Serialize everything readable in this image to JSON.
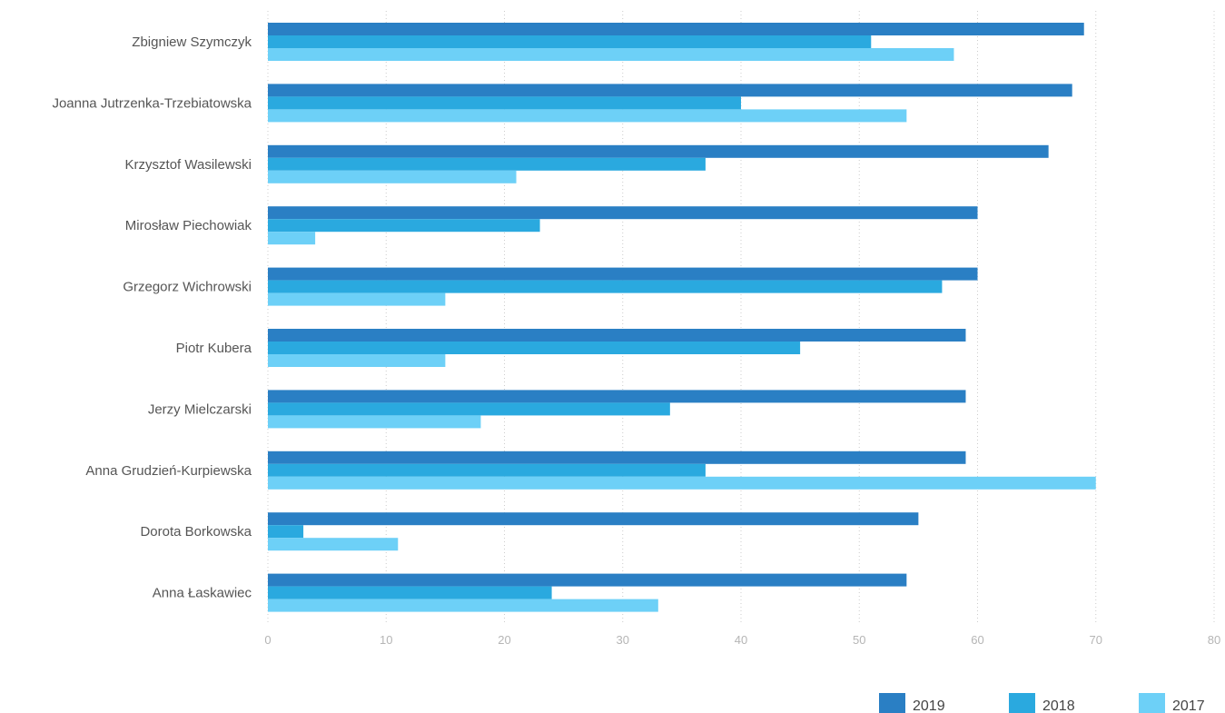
{
  "chart_data": {
    "type": "bar",
    "orientation": "horizontal",
    "categories": [
      "Zbigniew Szymczyk",
      "Joanna Jutrzenka-Trzebiatowska",
      "Krzysztof Wasilewski",
      "Mirosław Piechowiak",
      "Grzegorz Wichrowski",
      "Piotr Kubera",
      "Jerzy Mielczarski",
      "Anna Grudzień-Kurpiewska",
      "Dorota Borkowska",
      "Anna Łaskawiec"
    ],
    "series": [
      {
        "name": "2019",
        "color": "#2a7fc4",
        "values": [
          69,
          68,
          66,
          60,
          60,
          59,
          59,
          59,
          55,
          54
        ]
      },
      {
        "name": "2018",
        "color": "#2aa9df",
        "values": [
          51,
          40,
          37,
          23,
          57,
          45,
          34,
          37,
          3,
          24
        ]
      },
      {
        "name": "2017",
        "color": "#6dd0f7",
        "values": [
          58,
          54,
          21,
          4,
          15,
          15,
          18,
          70,
          11,
          33
        ]
      }
    ],
    "xlim": [
      0,
      80
    ],
    "ticks": [
      "0",
      "10",
      "20",
      "30",
      "40",
      "50",
      "60",
      "70",
      "80"
    ],
    "grid": true,
    "legend_position": "bottom-right",
    "title": "",
    "xlabel": "",
    "ylabel": ""
  }
}
